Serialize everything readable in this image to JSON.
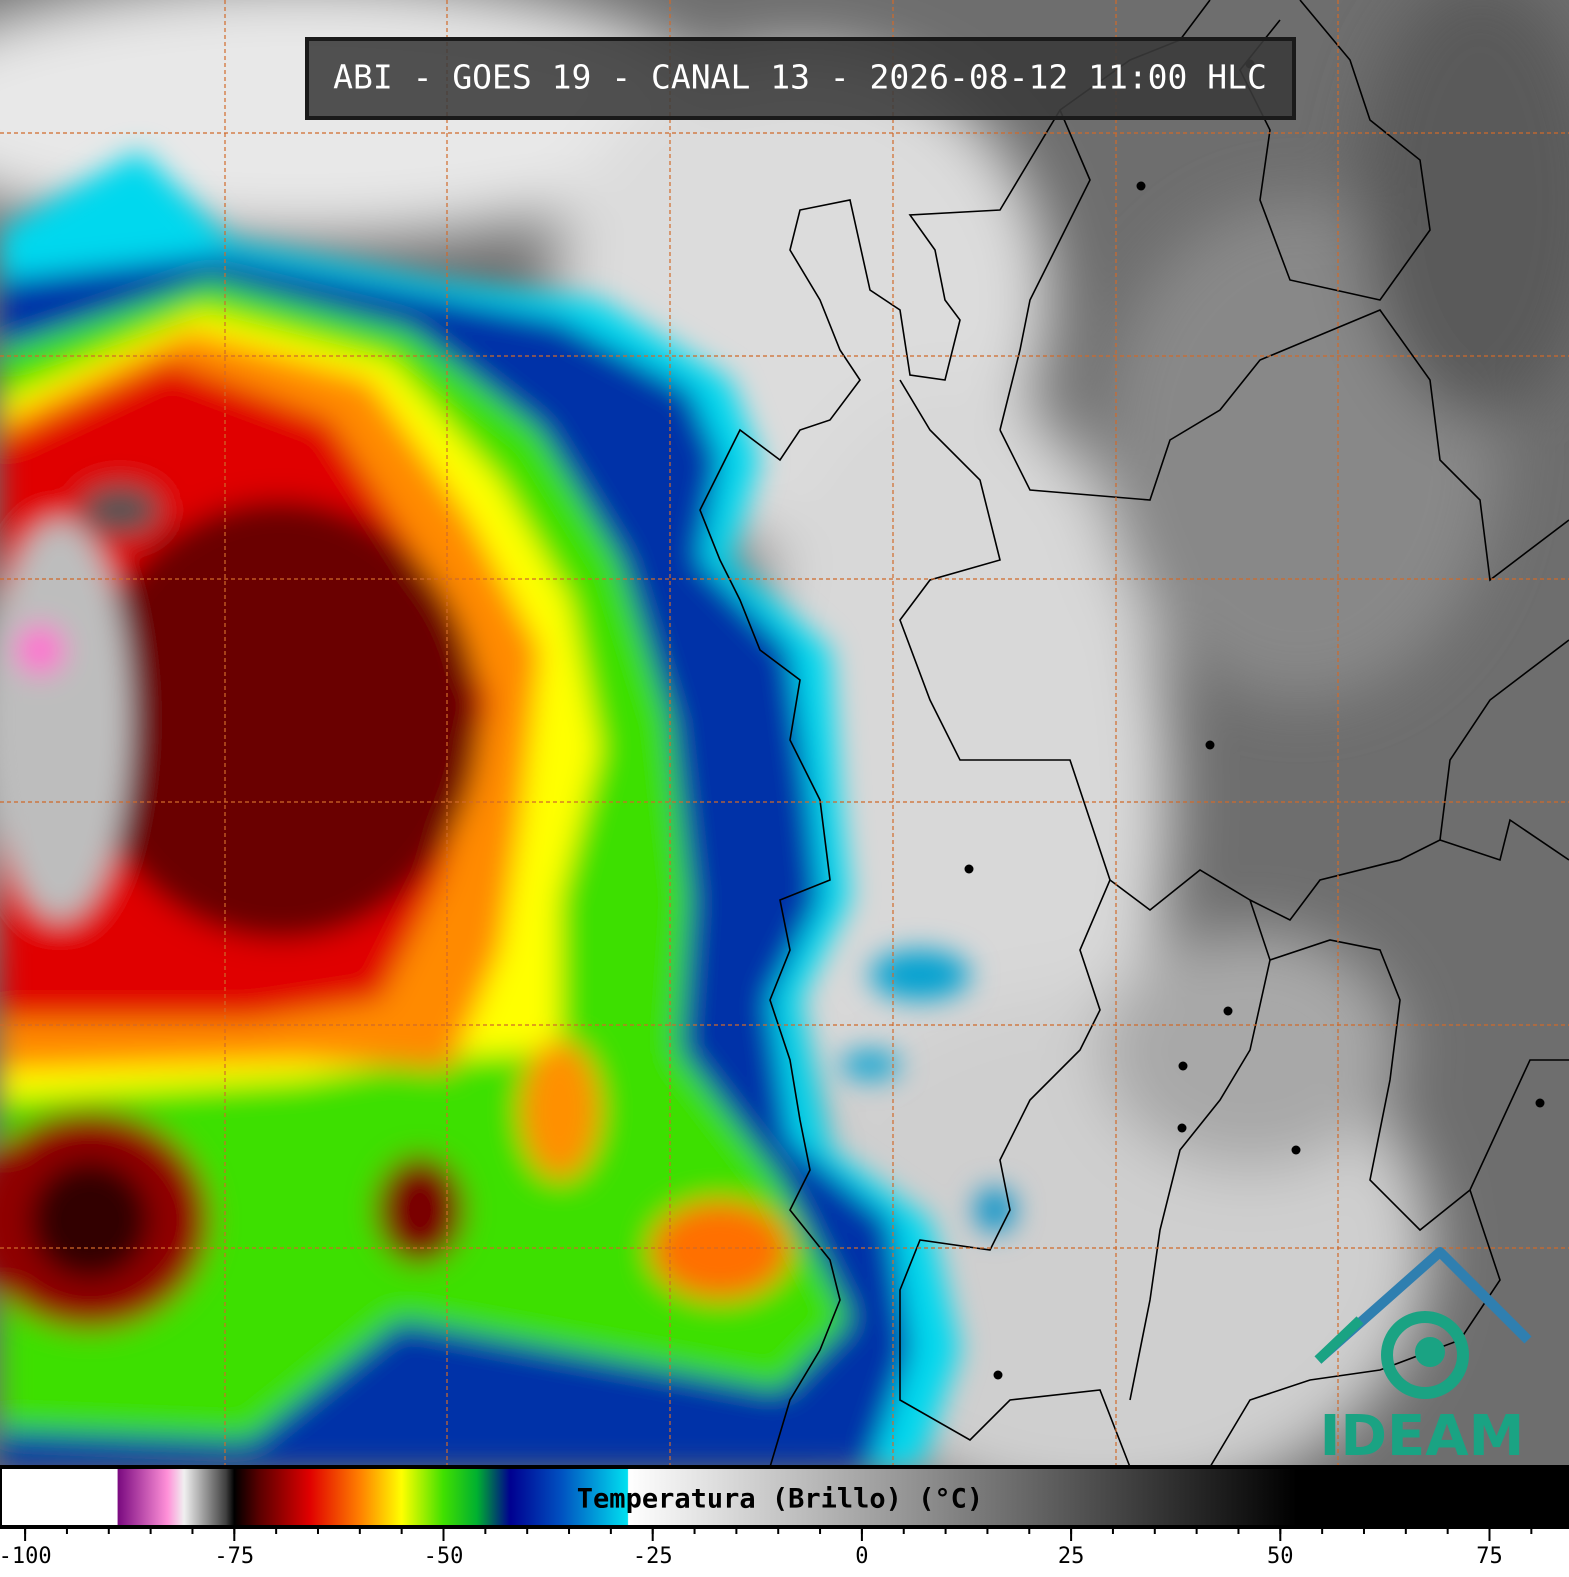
{
  "title": "ABI - GOES 19 - CANAL 13 - 2026-08-12 11:00 HLC",
  "colorbar": {
    "label": "Temperatura (Brillo) (°C)",
    "xlim": [
      -103,
      84.5
    ],
    "xticks": [
      -100,
      -75,
      -50,
      -25,
      0,
      25,
      50,
      75
    ],
    "colormap": [
      {
        "value": -103,
        "color": "#ffffff"
      },
      {
        "value": -89,
        "color": "#ffffff"
      },
      {
        "value": -88.9,
        "color": "#7a0a80"
      },
      {
        "value": -83,
        "color": "#ff90d8"
      },
      {
        "value": -81,
        "color": "#f0f0f0"
      },
      {
        "value": -76,
        "color": "#404040"
      },
      {
        "value": -75,
        "color": "#000000"
      },
      {
        "value": -72,
        "color": "#5a0000"
      },
      {
        "value": -66,
        "color": "#e00000"
      },
      {
        "value": -60,
        "color": "#ff8000"
      },
      {
        "value": -55,
        "color": "#ffff00"
      },
      {
        "value": -50,
        "color": "#40e000"
      },
      {
        "value": -46,
        "color": "#00b030"
      },
      {
        "value": -42,
        "color": "#000090"
      },
      {
        "value": -36,
        "color": "#0050c0"
      },
      {
        "value": -28,
        "color": "#00e0f0"
      },
      {
        "value": -27.9,
        "color": "#ffffff"
      },
      {
        "value": 52,
        "color": "#000000"
      },
      {
        "value": 84.5,
        "color": "#000000"
      }
    ]
  },
  "logo": "IDEAM"
}
